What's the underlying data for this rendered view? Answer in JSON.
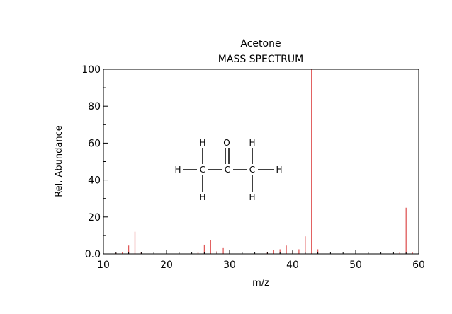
{
  "chart_data": {
    "type": "bar",
    "title": "Acetone",
    "subtitle": "MASS SPECTRUM",
    "xlabel": "m/z",
    "ylabel": "Rel. Abundance",
    "xlim": [
      10,
      60
    ],
    "ylim": [
      0,
      100
    ],
    "x_ticks": [
      "10",
      "20",
      "30",
      "40",
      "50",
      "60"
    ],
    "y_ticks": [
      "0.0",
      "20",
      "40",
      "60",
      "80",
      "100"
    ],
    "bar_color": "#e05a5a",
    "series": [
      {
        "x": [
          12,
          13,
          14,
          15,
          16,
          25,
          26,
          27,
          28,
          29,
          36,
          37,
          38,
          39,
          40,
          41,
          42,
          43,
          44,
          57,
          58,
          59
        ],
        "values": [
          0.5,
          1,
          4.5,
          12,
          1,
          1,
          5,
          7.5,
          1.5,
          3.5,
          1,
          2,
          2.5,
          4.5,
          1.5,
          2.5,
          9.5,
          100,
          2.5,
          1,
          25,
          1
        ]
      }
    ],
    "grid": false
  },
  "molecule": {
    "atoms": {
      "h_top_left": "H",
      "h_top_right": "H",
      "o": "O",
      "h_left": "H",
      "c1": "C",
      "c2": "C",
      "c3": "C",
      "h_right": "H",
      "h_bottom_left": "H",
      "h_bottom_right": "H"
    }
  }
}
